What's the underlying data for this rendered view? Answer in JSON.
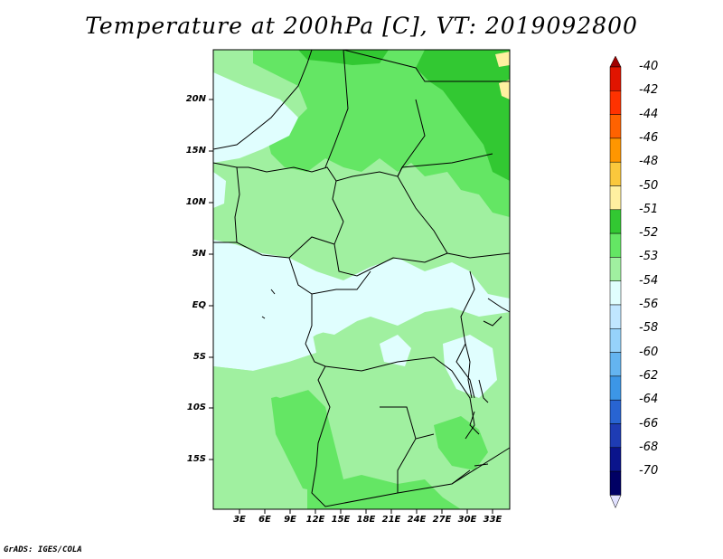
{
  "title": "Temperature at 200hPa [C], VT: 2019092800",
  "credit": "GrADS: IGES/COLA",
  "map": {
    "lat_labels": [
      "20N",
      "15N",
      "10N",
      "5N",
      "EQ",
      "5S",
      "10S",
      "15S"
    ],
    "lon_labels": [
      "3E",
      "6E",
      "9E",
      "12E",
      "15E",
      "18E",
      "21E",
      "24E",
      "27E",
      "30E",
      "33E"
    ],
    "background_color": "#e0fefe"
  },
  "colorbar": {
    "labels": [
      "-40",
      "-42",
      "-44",
      "-46",
      "-48",
      "-50",
      "-51",
      "-52",
      "-53",
      "-54",
      "-56",
      "-58",
      "-60",
      "-62",
      "-64",
      "-66",
      "-68",
      "-70"
    ],
    "colors": [
      "#a00000",
      "#e11400",
      "#ff3200",
      "#ff6200",
      "#ff9600",
      "#fac83c",
      "#fff0a0",
      "#32c832",
      "#64e664",
      "#a0f0a0",
      "#e0fefe",
      "#c0e6ff",
      "#96d2fa",
      "#64b4f0",
      "#3c96e6",
      "#2864d2",
      "#1e3cb4",
      "#0a148c",
      "#000064",
      "#e1e1ff"
    ]
  }
}
